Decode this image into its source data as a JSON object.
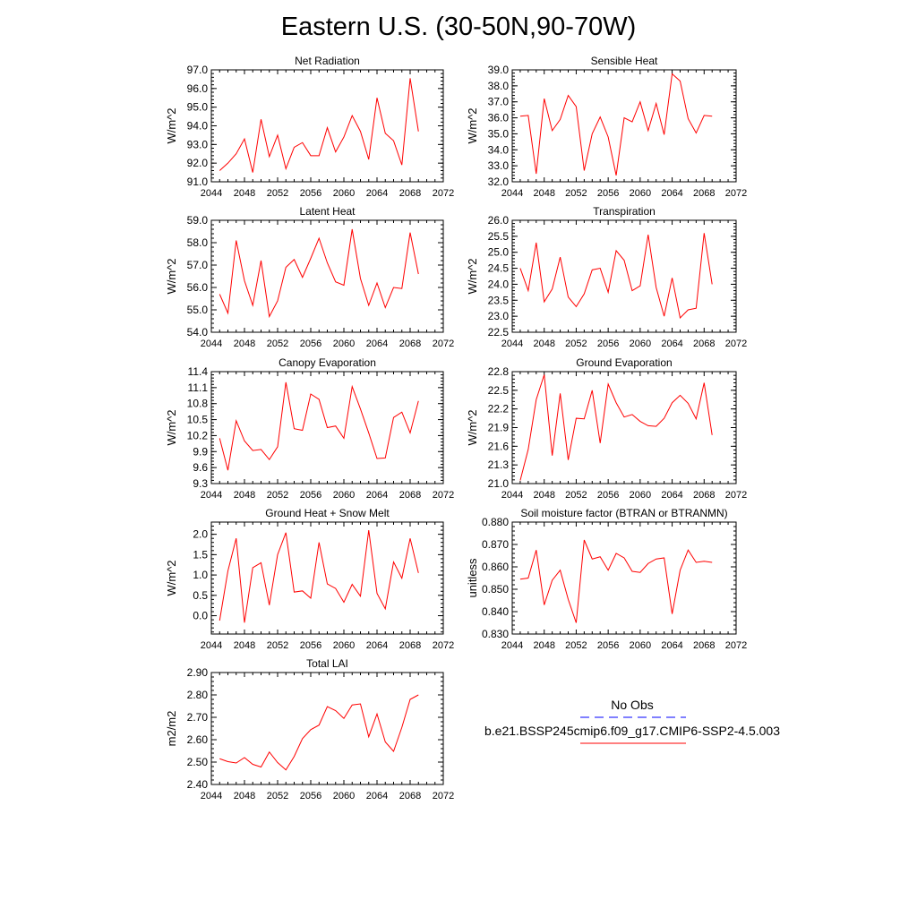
{
  "title": "Eastern U.S. (30-50N,90-70W)",
  "legend": {
    "obs_label": "No Obs",
    "obs_color": "#0000ff",
    "obs_style": "dashed",
    "series_label": "b.e21.BSSP245cmip6.f09_g17.CMIP6-SSP2-4.5.003",
    "series_color": "#ff0000",
    "series_style": "solid"
  },
  "chart_data": [
    {
      "type": "line",
      "title": "Net Radiation",
      "ylabel": "W/m^2",
      "xlim": [
        2044,
        2072
      ],
      "ylim": [
        91.0,
        97.0
      ],
      "xticks": [
        "2044",
        "2048",
        "2052",
        "2056",
        "2060",
        "2064",
        "2068",
        "2072"
      ],
      "yticks": [
        "91.0",
        "92.0",
        "93.0",
        "94.0",
        "95.0",
        "96.0",
        "97.0"
      ],
      "x": [
        2045,
        2046,
        2047,
        2048,
        2049,
        2050,
        2051,
        2052,
        2053,
        2054,
        2055,
        2056,
        2057,
        2058,
        2059,
        2060,
        2061,
        2062,
        2063,
        2064,
        2065,
        2066,
        2067,
        2068,
        2069
      ],
      "series": [
        {
          "color": "#ff0000",
          "values": [
            91.6,
            92.0,
            92.5,
            93.3,
            91.5,
            94.35,
            92.35,
            93.5,
            91.7,
            92.85,
            93.1,
            92.4,
            92.4,
            93.9,
            92.6,
            93.4,
            94.55,
            93.7,
            92.2,
            95.5,
            93.6,
            93.2,
            91.9,
            96.55,
            93.7
          ]
        }
      ]
    },
    {
      "type": "line",
      "title": "Sensible Heat",
      "ylabel": "W/m^2",
      "xlim": [
        2044,
        2072
      ],
      "ylim": [
        32.0,
        39.0
      ],
      "xticks": [
        "2044",
        "2048",
        "2052",
        "2056",
        "2060",
        "2064",
        "2068",
        "2072"
      ],
      "yticks": [
        "32.0",
        "33.0",
        "34.0",
        "35.0",
        "36.0",
        "37.0",
        "38.0",
        "39.0"
      ],
      "x": [
        2045,
        2046,
        2047,
        2048,
        2049,
        2050,
        2051,
        2052,
        2053,
        2054,
        2055,
        2056,
        2057,
        2058,
        2059,
        2060,
        2061,
        2062,
        2063,
        2064,
        2065,
        2066,
        2067,
        2068,
        2069
      ],
      "series": [
        {
          "color": "#ff0000",
          "values": [
            36.1,
            36.15,
            32.5,
            37.2,
            35.2,
            35.9,
            37.4,
            36.7,
            32.7,
            35.0,
            36.05,
            34.8,
            32.4,
            36.0,
            35.75,
            37.0,
            35.2,
            36.9,
            34.95,
            38.75,
            38.3,
            35.95,
            35.05,
            36.15,
            36.1
          ]
        }
      ]
    },
    {
      "type": "line",
      "title": "Latent Heat",
      "ylabel": "W/m^2",
      "xlim": [
        2044,
        2072
      ],
      "ylim": [
        54.0,
        59.0
      ],
      "xticks": [
        "2044",
        "2048",
        "2052",
        "2056",
        "2060",
        "2064",
        "2068",
        "2072"
      ],
      "yticks": [
        "54.0",
        "55.0",
        "56.0",
        "57.0",
        "58.0",
        "59.0"
      ],
      "x": [
        2045,
        2046,
        2047,
        2048,
        2049,
        2050,
        2051,
        2052,
        2053,
        2054,
        2055,
        2056,
        2057,
        2058,
        2059,
        2060,
        2061,
        2062,
        2063,
        2064,
        2065,
        2066,
        2067,
        2068,
        2069
      ],
      "series": [
        {
          "color": "#ff0000",
          "values": [
            55.7,
            54.85,
            58.1,
            56.3,
            55.2,
            57.2,
            54.7,
            55.4,
            56.9,
            57.25,
            56.45,
            57.3,
            58.2,
            57.1,
            56.25,
            56.1,
            58.6,
            56.4,
            55.2,
            56.2,
            55.1,
            56.0,
            55.95,
            58.45,
            56.6
          ]
        }
      ]
    },
    {
      "type": "line",
      "title": "Transpiration",
      "ylabel": "W/m^2",
      "xlim": [
        2044,
        2072
      ],
      "ylim": [
        22.5,
        26.0
      ],
      "xticks": [
        "2044",
        "2048",
        "2052",
        "2056",
        "2060",
        "2064",
        "2068",
        "2072"
      ],
      "yticks": [
        "22.5",
        "23.0",
        "23.5",
        "24.0",
        "24.5",
        "25.0",
        "25.5",
        "26.0"
      ],
      "x": [
        2045,
        2046,
        2047,
        2048,
        2049,
        2050,
        2051,
        2052,
        2053,
        2054,
        2055,
        2056,
        2057,
        2058,
        2059,
        2060,
        2061,
        2062,
        2063,
        2064,
        2065,
        2066,
        2067,
        2068,
        2069
      ],
      "series": [
        {
          "color": "#ff0000",
          "values": [
            24.5,
            23.8,
            25.3,
            23.45,
            23.85,
            24.85,
            23.6,
            23.3,
            23.7,
            24.45,
            24.5,
            23.75,
            25.05,
            24.75,
            23.8,
            23.95,
            25.55,
            23.9,
            23.0,
            24.2,
            22.95,
            23.2,
            23.25,
            25.6,
            24.0
          ]
        }
      ]
    },
    {
      "type": "line",
      "title": "Canopy Evaporation",
      "ylabel": "W/m^2",
      "xlim": [
        2044,
        2072
      ],
      "ylim": [
        9.3,
        11.4
      ],
      "xticks": [
        "2044",
        "2048",
        "2052",
        "2056",
        "2060",
        "2064",
        "2068",
        "2072"
      ],
      "yticks": [
        "9.3",
        "9.6",
        "9.9",
        "10.2",
        "10.5",
        "10.8",
        "11.1",
        "11.4"
      ],
      "x": [
        2045,
        2046,
        2047,
        2048,
        2049,
        2050,
        2051,
        2052,
        2053,
        2054,
        2055,
        2056,
        2057,
        2058,
        2059,
        2060,
        2061,
        2062,
        2063,
        2064,
        2065,
        2066,
        2067,
        2068,
        2069
      ],
      "series": [
        {
          "color": "#ff0000",
          "values": [
            10.15,
            9.55,
            10.48,
            10.1,
            9.92,
            9.94,
            9.75,
            9.99,
            11.2,
            10.33,
            10.3,
            10.98,
            10.88,
            10.35,
            10.38,
            10.15,
            11.12,
            10.7,
            10.25,
            9.77,
            9.78,
            10.54,
            10.64,
            10.25,
            10.85
          ]
        }
      ]
    },
    {
      "type": "line",
      "title": "Ground Evaporation",
      "ylabel": "W/m^2",
      "xlim": [
        2044,
        2072
      ],
      "ylim": [
        21.0,
        22.8
      ],
      "xticks": [
        "2044",
        "2048",
        "2052",
        "2056",
        "2060",
        "2064",
        "2068",
        "2072"
      ],
      "yticks": [
        "21.0",
        "21.3",
        "21.6",
        "21.9",
        "22.2",
        "22.5",
        "22.8"
      ],
      "x": [
        2045,
        2046,
        2047,
        2048,
        2049,
        2050,
        2051,
        2052,
        2053,
        2054,
        2055,
        2056,
        2057,
        2058,
        2059,
        2060,
        2061,
        2062,
        2063,
        2064,
        2065,
        2066,
        2067,
        2068,
        2069
      ],
      "series": [
        {
          "color": "#ff0000",
          "values": [
            21.05,
            21.55,
            22.35,
            22.75,
            21.45,
            22.45,
            21.38,
            22.05,
            22.04,
            22.5,
            21.65,
            22.6,
            22.3,
            22.07,
            22.11,
            22.0,
            21.93,
            21.92,
            22.05,
            22.3,
            22.42,
            22.29,
            22.04,
            22.62,
            21.78
          ]
        }
      ]
    },
    {
      "type": "line",
      "title": "Ground Heat + Snow Melt",
      "ylabel": "W/m^2",
      "xlim": [
        2044,
        2072
      ],
      "ylim": [
        -0.45,
        2.3
      ],
      "xticks": [
        "2044",
        "2048",
        "2052",
        "2056",
        "2060",
        "2064",
        "2068",
        "2072"
      ],
      "yticks": [
        "0.0",
        "0.5",
        "1.0",
        "1.5",
        "2.0"
      ],
      "yticks_values": [
        0.0,
        0.5,
        1.0,
        1.5,
        2.0
      ],
      "x": [
        2045,
        2046,
        2047,
        2048,
        2049,
        2050,
        2051,
        2052,
        2053,
        2054,
        2055,
        2056,
        2057,
        2058,
        2059,
        2060,
        2061,
        2062,
        2063,
        2064,
        2065,
        2066,
        2067,
        2068,
        2069
      ],
      "series": [
        {
          "color": "#ff0000",
          "values": [
            -0.12,
            1.1,
            1.9,
            -0.17,
            1.18,
            1.3,
            0.26,
            1.5,
            2.04,
            0.58,
            0.61,
            0.43,
            1.8,
            0.78,
            0.67,
            0.33,
            0.77,
            0.48,
            2.1,
            0.55,
            0.17,
            1.32,
            0.92,
            1.9,
            1.05
          ]
        }
      ]
    },
    {
      "type": "line",
      "title": "Soil moisture factor (BTRAN or BTRANMN)",
      "ylabel": "unitless",
      "xlim": [
        2044,
        2072
      ],
      "ylim": [
        0.83,
        0.88
      ],
      "xticks": [
        "2044",
        "2048",
        "2052",
        "2056",
        "2060",
        "2064",
        "2068",
        "2072"
      ],
      "yticks": [
        "0.830",
        "0.840",
        "0.850",
        "0.860",
        "0.870",
        "0.880"
      ],
      "x": [
        2045,
        2046,
        2047,
        2048,
        2049,
        2050,
        2051,
        2052,
        2053,
        2054,
        2055,
        2056,
        2057,
        2058,
        2059,
        2060,
        2061,
        2062,
        2063,
        2064,
        2065,
        2066,
        2067,
        2068,
        2069
      ],
      "series": [
        {
          "color": "#ff0000",
          "values": [
            0.8545,
            0.855,
            0.8675,
            0.843,
            0.854,
            0.8585,
            0.8455,
            0.835,
            0.872,
            0.8635,
            0.8645,
            0.8585,
            0.866,
            0.864,
            0.858,
            0.8575,
            0.8615,
            0.8635,
            0.864,
            0.839,
            0.8585,
            0.8675,
            0.862,
            0.8625,
            0.862
          ]
        }
      ]
    },
    {
      "type": "line",
      "title": "Total LAI",
      "ylabel": "m2/m2",
      "xlim": [
        2044,
        2072
      ],
      "ylim": [
        2.4,
        2.9
      ],
      "xticks": [
        "2044",
        "2048",
        "2052",
        "2056",
        "2060",
        "2064",
        "2068",
        "2072"
      ],
      "yticks": [
        "2.40",
        "2.50",
        "2.60",
        "2.70",
        "2.80",
        "2.90"
      ],
      "x": [
        2045,
        2046,
        2047,
        2048,
        2049,
        2050,
        2051,
        2052,
        2053,
        2054,
        2055,
        2056,
        2057,
        2058,
        2059,
        2060,
        2061,
        2062,
        2063,
        2064,
        2065,
        2066,
        2067,
        2068,
        2069
      ],
      "series": [
        {
          "color": "#ff0000",
          "values": [
            2.515,
            2.502,
            2.496,
            2.52,
            2.49,
            2.478,
            2.545,
            2.498,
            2.465,
            2.525,
            2.605,
            2.645,
            2.665,
            2.748,
            2.73,
            2.695,
            2.755,
            2.76,
            2.613,
            2.715,
            2.59,
            2.548,
            2.655,
            2.78,
            2.8
          ]
        }
      ]
    }
  ]
}
